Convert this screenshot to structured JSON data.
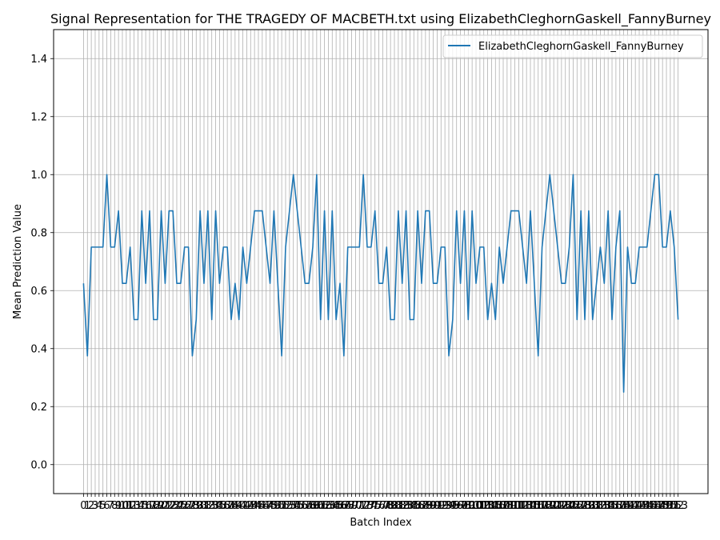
{
  "chart_data": {
    "type": "line",
    "title": "Signal Representation for THE TRAGEDY OF MACBETH.txt using ElizabethCleghornGaskell_FannyBurney",
    "xlabel": "Batch Index",
    "ylabel": "Mean Prediction Value",
    "ylim": [
      -0.1,
      1.5
    ],
    "yticks": [
      0.0,
      0.2,
      0.4,
      0.6,
      0.8,
      1.0,
      1.2,
      1.4
    ],
    "ytick_labels": [
      "0.0",
      "0.2",
      "0.4",
      "0.6",
      "0.8",
      "1.0",
      "1.2",
      "1.4"
    ],
    "xlim": [
      -7.7,
      160.7
    ],
    "grid": true,
    "legend_position": "upper right",
    "line_color": "#1f77b4",
    "series": [
      {
        "name": "ElizabethCleghornGaskell_FannyBurney",
        "values": [
          0.625,
          0.375,
          0.75,
          0.75,
          0.75,
          0.75,
          1.0,
          0.75,
          0.75,
          0.875,
          0.625,
          0.625,
          0.75,
          0.5,
          0.5,
          0.875,
          0.625,
          0.875,
          0.5,
          0.5,
          0.875,
          0.625,
          0.875,
          0.875,
          0.625,
          0.625,
          0.75,
          0.75,
          0.375,
          0.5,
          0.875,
          0.625,
          0.875,
          0.5,
          0.875,
          0.625,
          0.75,
          0.75,
          0.5,
          0.625,
          0.5,
          0.75,
          0.625,
          0.75,
          0.875,
          0.875,
          0.875,
          0.75,
          0.625,
          0.875,
          0.625,
          0.375,
          0.75,
          0.875,
          1.0,
          0.875,
          0.75,
          0.625,
          0.625,
          0.75,
          1.0,
          0.5,
          0.875,
          0.5,
          0.875,
          0.5,
          0.625,
          0.375,
          0.75,
          0.75,
          0.75,
          0.75,
          1.0,
          0.75,
          0.75,
          0.875,
          0.625,
          0.625,
          0.75,
          0.5,
          0.5,
          0.875,
          0.625,
          0.875,
          0.5,
          0.5,
          0.875,
          0.625,
          0.875,
          0.875,
          0.625,
          0.625,
          0.75,
          0.75,
          0.375,
          0.5,
          0.875,
          0.625,
          0.875,
          0.5,
          0.875,
          0.625,
          0.75,
          0.75,
          0.5,
          0.625,
          0.5,
          0.75,
          0.625,
          0.75,
          0.875,
          0.875,
          0.875,
          0.75,
          0.625,
          0.875,
          0.625,
          0.375,
          0.75,
          0.875,
          1.0,
          0.875,
          0.75,
          0.625,
          0.625,
          0.75,
          1.0,
          0.5,
          0.875,
          0.5,
          0.875,
          0.5,
          0.625,
          0.75,
          0.625,
          0.875,
          0.5,
          0.75,
          0.875,
          0.25,
          0.75,
          0.625,
          0.625,
          0.75,
          0.75,
          0.75,
          0.875,
          1.0,
          1.0,
          0.75,
          0.75,
          0.875,
          0.75,
          0.5
        ]
      }
    ]
  }
}
